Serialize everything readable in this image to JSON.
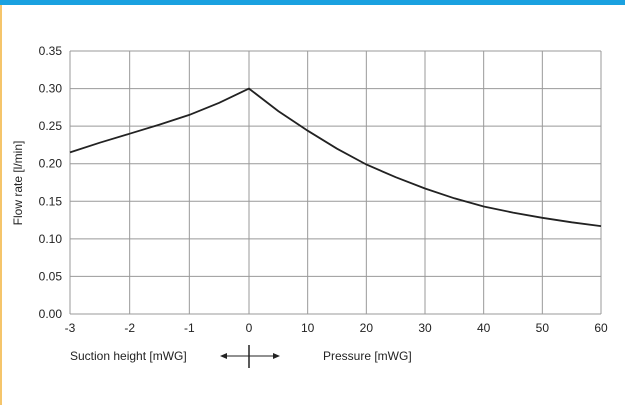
{
  "colors": {
    "top_bar": "#1aa1e0",
    "left_bar": "#f5c56b",
    "grid": "#999999",
    "curve": "#222222"
  },
  "chart_data": {
    "type": "line",
    "title": "",
    "ylabel": "Flow rate [l/min]",
    "ylim": [
      0,
      0.35
    ],
    "y_ticks": [
      "0.00",
      "0.05",
      "0.10",
      "0.15",
      "0.20",
      "0.25",
      "0.30",
      "0.35"
    ],
    "x_ticks": [
      "-3",
      "-2",
      "-1",
      "0",
      "10",
      "20",
      "30",
      "40",
      "50",
      "60"
    ],
    "x_axis_note": "Axis is split at 0: left side is suction height, right side is pressure",
    "left_axis_label": "Suction height [mWG]",
    "right_axis_label": "Pressure [mWG]",
    "grid": true,
    "legend": "none",
    "series": [
      {
        "suction_points": [
          {
            "suction_mwg": 3,
            "flow": 0.215
          },
          {
            "suction_mwg": 2.5,
            "flow": 0.228
          },
          {
            "suction_mwg": 2,
            "flow": 0.24
          },
          {
            "suction_mwg": 1.5,
            "flow": 0.252
          },
          {
            "suction_mwg": 1,
            "flow": 0.265
          },
          {
            "suction_mwg": 0.5,
            "flow": 0.281
          },
          {
            "suction_mwg": 0,
            "flow": 0.3
          }
        ],
        "pressure_points": [
          {
            "pressure_mwg": 0,
            "flow": 0.3
          },
          {
            "pressure_mwg": 5,
            "flow": 0.27
          },
          {
            "pressure_mwg": 10,
            "flow": 0.244
          },
          {
            "pressure_mwg": 15,
            "flow": 0.22
          },
          {
            "pressure_mwg": 20,
            "flow": 0.199
          },
          {
            "pressure_mwg": 25,
            "flow": 0.182
          },
          {
            "pressure_mwg": 30,
            "flow": 0.167
          },
          {
            "pressure_mwg": 35,
            "flow": 0.154
          },
          {
            "pressure_mwg": 40,
            "flow": 0.143
          },
          {
            "pressure_mwg": 45,
            "flow": 0.135
          },
          {
            "pressure_mwg": 50,
            "flow": 0.128
          },
          {
            "pressure_mwg": 55,
            "flow": 0.122
          },
          {
            "pressure_mwg": 60,
            "flow": 0.117
          }
        ]
      }
    ]
  }
}
